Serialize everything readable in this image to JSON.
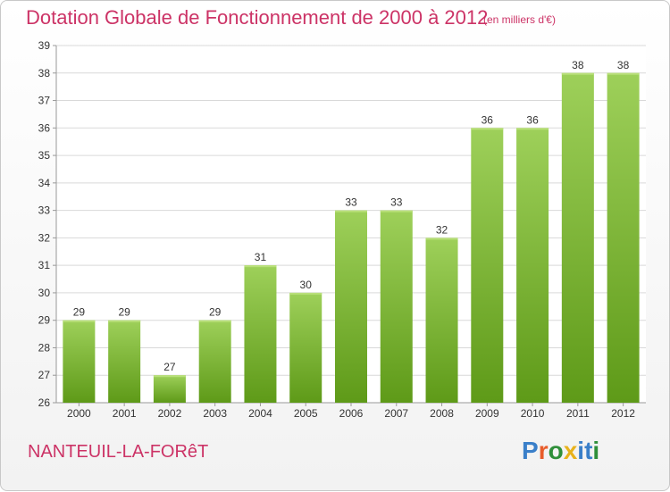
{
  "header": {
    "title": "Dotation Globale de Fonctionnement de 2000 à 2012",
    "unit": "(en milliers d'€)"
  },
  "footer": {
    "commune": "NANTEUIL-LA-FORêT",
    "logo_text": "Proxiti",
    "logo_colors": [
      "#3a7fc9",
      "#e85d2b",
      "#2f8f3a",
      "#e8b21c",
      "#3a7fc9",
      "#3a7fc9",
      "#2f8f3a"
    ]
  },
  "colors": {
    "accent": "#cc3366",
    "bar_top": "#9ed05a",
    "bar_bottom": "#5e9a18",
    "grid": "#d9d9d9",
    "axis_text": "#333333"
  },
  "chart_data": {
    "type": "bar",
    "title": "Dotation Globale de Fonctionnement de 2000 à 2012",
    "subtitle": "(en milliers d'€)",
    "xlabel": "",
    "ylabel": "",
    "categories": [
      "2000",
      "2001",
      "2002",
      "2003",
      "2004",
      "2005",
      "2006",
      "2007",
      "2008",
      "2009",
      "2010",
      "2011",
      "2012"
    ],
    "values": [
      29,
      29,
      27,
      29,
      31,
      30,
      33,
      33,
      32,
      36,
      36,
      38,
      38
    ],
    "ylim": [
      26,
      39
    ],
    "yticks": [
      26,
      27,
      28,
      29,
      30,
      31,
      32,
      33,
      34,
      35,
      36,
      37,
      38,
      39
    ],
    "grid": true,
    "legend": "none",
    "data_labels": true
  }
}
